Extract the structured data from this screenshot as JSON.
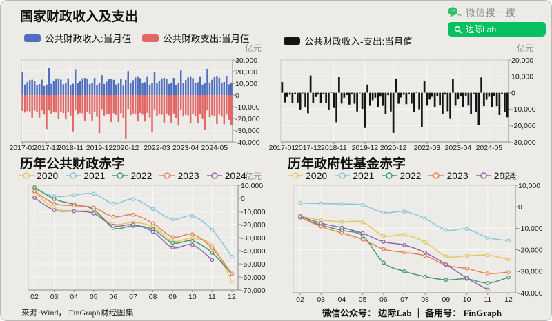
{
  "page": {
    "bg": "#edebe7"
  },
  "header": {
    "title": "国家财政收入及支出",
    "wechat_search_label": "微信搜一搜",
    "wechat_button_label": "边际Lab",
    "wechat_green": "#07c160"
  },
  "footers": {
    "source": "来源:Wind， FinGraph财经图集",
    "account": "微信公众号： 边际Lab ｜ 备用号： FinGraph"
  },
  "chart_data": [
    {
      "id": "fiscal",
      "type": "bar",
      "title": "国家财政收入及支出",
      "unit": "亿元",
      "n_points": 88,
      "ylim": [
        -40000,
        30000
      ],
      "yticks": [
        {
          "v": 30000,
          "label": "30,000"
        },
        {
          "v": 20000,
          "label": "20,000"
        },
        {
          "v": 10000,
          "label": "10,000"
        },
        {
          "v": 0,
          "label": "0"
        },
        {
          "v": -10000,
          "label": "-10,000"
        },
        {
          "v": -20000,
          "label": "-20,000"
        },
        {
          "v": -30000,
          "label": "-30,000"
        },
        {
          "v": -40000,
          "label": "-40,000"
        }
      ],
      "x_labels": [
        {
          "label": "2017-01",
          "index": 0
        },
        {
          "label": "2017-12",
          "index": 10
        },
        {
          "label": "2018-11",
          "index": 20
        },
        {
          "label": "2019-12",
          "index": 32
        },
        {
          "label": "2020-12",
          "index": 43
        },
        {
          "label": "2022-03",
          "index": 56
        },
        {
          "label": "2023-04",
          "index": 68
        },
        {
          "label": "2024-05",
          "index": 80
        }
      ],
      "series": [
        {
          "name": "公共财政收入:当月值",
          "color": "#4e6ec0",
          "values": [
            20000,
            9000,
            11000,
            12800,
            13200,
            12300,
            8500,
            9400,
            13200,
            7700,
            9000,
            23500,
            9700,
            11800,
            13800,
            14300,
            13300,
            9200,
            10100,
            14300,
            8300,
            9700,
            22000,
            10000,
            12200,
            14300,
            14700,
            13800,
            9500,
            10500,
            14700,
            8600,
            10000,
            17000,
            9500,
            11500,
            13500,
            14000,
            13100,
            9000,
            9900,
            14000,
            8100,
            13000,
            20500,
            10500,
            12800,
            15000,
            15500,
            14500,
            10000,
            11000,
            15500,
            9000,
            10500,
            19500,
            10000,
            12200,
            14300,
            14700,
            13800,
            9500,
            10500,
            14700,
            8600,
            10000,
            21000,
            10500,
            12800,
            15000,
            15500,
            14500,
            10000,
            11000,
            15500,
            9000,
            10500,
            22400,
            10700,
            13100,
            15300,
            15800,
            14800,
            10200,
            11200,
            15800,
            9200,
            10700
          ]
        },
        {
          "name": "公共财政支出:当月值",
          "color": "#e26868",
          "values": [
            -13500,
            -14900,
            -13600,
            -14000,
            -19600,
            -13200,
            -14500,
            -19600,
            -13200,
            -16600,
            -29000,
            -13000,
            -15800,
            -14400,
            -14900,
            -20700,
            -14000,
            -15300,
            -20700,
            -14000,
            -17600,
            -31000,
            -12500,
            -16600,
            -15200,
            -15700,
            -21900,
            -14700,
            -16200,
            -21900,
            -14700,
            -18500,
            -32500,
            -12000,
            -17500,
            -16000,
            -16500,
            -23000,
            -15500,
            -17000,
            -23000,
            -15500,
            -19500,
            -37500,
            -11800,
            -17200,
            -15700,
            -16200,
            -22500,
            -15200,
            -16700,
            -22500,
            -15200,
            -19100,
            -31500,
            -12200,
            -17900,
            -16300,
            -16800,
            -23500,
            -15800,
            -17300,
            -23500,
            -15800,
            -19900,
            -26000,
            -12600,
            -18400,
            -16800,
            -17300,
            -24200,
            -16300,
            -17900,
            -24200,
            -16300,
            -20500,
            -30000,
            -13000,
            -18900,
            -17300,
            -17800,
            -24800,
            -16700,
            -18400,
            -24800,
            -16700,
            -21100,
            -25700
          ]
        }
      ]
    },
    {
      "id": "balance",
      "type": "bar",
      "unit": "亿元",
      "n_points": 88,
      "ylim": [
        -30000,
        20000
      ],
      "yticks": [
        {
          "v": 20000,
          "label": "20,000"
        },
        {
          "v": 10000,
          "label": "10,000"
        },
        {
          "v": 0,
          "label": "0"
        },
        {
          "v": -10000,
          "label": "-10,000"
        },
        {
          "v": -20000,
          "label": "-20,000"
        },
        {
          "v": -30000,
          "label": "-30,000"
        }
      ],
      "x_labels": [
        {
          "label": "2017-01",
          "index": 0
        },
        {
          "label": "2017-12",
          "index": 10
        },
        {
          "label": "2018-11",
          "index": 20
        },
        {
          "label": "2019-12",
          "index": 32
        },
        {
          "label": "2020-12",
          "index": 43
        },
        {
          "label": "2022-03",
          "index": 56
        },
        {
          "label": "2023-04",
          "index": 68
        },
        {
          "label": "2024-05",
          "index": 80
        }
      ],
      "series": [
        {
          "name": "公共财政收入-支出:当月值",
          "color": "#141414",
          "values": [
            6500,
            -5900,
            -2600,
            -1200,
            -6400,
            -900,
            -6000,
            -10200,
            0,
            -8900,
            -12500,
            10500,
            -6100,
            -2600,
            -1100,
            -6400,
            -700,
            -6100,
            -10600,
            300,
            -9300,
            -18000,
            9500,
            -6600,
            -3000,
            -1400,
            -7200,
            -900,
            -6700,
            -11400,
            0,
            -9900,
            -21500,
            5000,
            -8000,
            -4500,
            -3000,
            -9000,
            -2400,
            -8000,
            -13100,
            -1500,
            -11400,
            -24500,
            8700,
            -6700,
            -2900,
            -1200,
            -7000,
            -700,
            -6700,
            -11500,
            300,
            -10100,
            -21000,
            7300,
            -7900,
            -4100,
            -2500,
            -8800,
            -2000,
            -7800,
            -13000,
            -1100,
            -11300,
            -16000,
            8400,
            -7900,
            -4000,
            -2300,
            -8700,
            -1800,
            -7900,
            -13200,
            -800,
            -11500,
            -19500,
            9400,
            -8200,
            -4200,
            -2500,
            -9000,
            -1900,
            -8200,
            -13600,
            -900,
            -11900,
            -15000
          ]
        }
      ]
    },
    {
      "id": "pubdef",
      "type": "line",
      "title": "历年公共财政赤字",
      "unit": "亿元",
      "categories": [
        "02",
        "03",
        "04",
        "05",
        "06",
        "07",
        "08",
        "09",
        "10",
        "11",
        "12"
      ],
      "ylim": [
        -70000,
        10000
      ],
      "yticks": [
        {
          "v": 10000,
          "label": "10,000"
        },
        {
          "v": 0,
          "label": "0"
        },
        {
          "v": -10000,
          "label": "-10,000"
        },
        {
          "v": -20000,
          "label": "-20,000"
        },
        {
          "v": -30000,
          "label": "-30,000"
        },
        {
          "v": -40000,
          "label": "-40,000"
        },
        {
          "v": -50000,
          "label": "-50,000"
        },
        {
          "v": -60000,
          "label": "-60,000"
        },
        {
          "v": -70000,
          "label": "-70,000"
        }
      ],
      "series": [
        {
          "name": "2020",
          "color": "#e7c65f",
          "values": [
            4500,
            -7500,
            -9500,
            -10500,
            -19500,
            -18500,
            -21500,
            -32500,
            -30500,
            -36000,
            -63500
          ]
        },
        {
          "name": "2021",
          "color": "#86c5dd",
          "values": [
            7500,
            1500,
            2500,
            3500,
            -4000,
            -500,
            -8000,
            -16000,
            -13500,
            -24000,
            -44500
          ]
        },
        {
          "name": "2022",
          "color": "#3e9b6c",
          "values": [
            8500,
            -500,
            -4500,
            -8500,
            -22500,
            -21000,
            -23500,
            -34000,
            -32500,
            -41500,
            -58000
          ]
        },
        {
          "name": "2023",
          "color": "#e87e57",
          "values": [
            5500,
            -4000,
            -5500,
            -7000,
            -14000,
            -12500,
            -19000,
            -29500,
            -27500,
            -38000,
            -57500
          ]
        },
        {
          "name": "2024",
          "color": "#8f64a8",
          "values": [
            500,
            -9000,
            -9800,
            -11500,
            -21000,
            -20000,
            -25500,
            -37500,
            -35500,
            -47000,
            null
          ]
        }
      ]
    },
    {
      "id": "funddef",
      "type": "line",
      "title": "历年政府性基金赤字",
      "unit": "亿元",
      "categories": [
        "02",
        "03",
        "04",
        "05",
        "06",
        "07",
        "08",
        "09",
        "10",
        "11",
        "12"
      ],
      "ylim": [
        -40000,
        10000
      ],
      "yticks": [
        {
          "v": 10000,
          "label": "10,000"
        },
        {
          "v": 0,
          "label": "0"
        },
        {
          "v": -10000,
          "label": "-10,000"
        },
        {
          "v": -20000,
          "label": "-20,000"
        },
        {
          "v": -30000,
          "label": "-30,000"
        },
        {
          "v": -40000,
          "label": "-40,000"
        }
      ],
      "series": [
        {
          "name": "2020",
          "color": "#e7c65f",
          "values": [
            -4300,
            -6200,
            -7000,
            -7200,
            -13500,
            -13000,
            -16500,
            -23000,
            -22800,
            -22500,
            -24500
          ]
        },
        {
          "name": "2021",
          "color": "#86c5dd",
          "values": [
            1800,
            1500,
            1300,
            800,
            -2700,
            -2200,
            -5500,
            -10800,
            -10300,
            -14300,
            -15800
          ]
        },
        {
          "name": "2022",
          "color": "#3e9b6c",
          "values": [
            -5000,
            -8500,
            -11000,
            -13500,
            -26000,
            -30000,
            -32500,
            -34000,
            -33500,
            -35500,
            -32800
          ]
        },
        {
          "name": "2023",
          "color": "#e87e57",
          "values": [
            -4800,
            -9200,
            -12200,
            -15200,
            -19700,
            -21200,
            -22800,
            -27200,
            -28700,
            -31000,
            -30400
          ]
        },
        {
          "name": "2024",
          "color": "#8f64a8",
          "values": [
            -4400,
            -7600,
            -9700,
            -12300,
            -16300,
            -17800,
            -21300,
            -26800,
            -33200,
            -38500,
            null
          ]
        }
      ]
    }
  ]
}
